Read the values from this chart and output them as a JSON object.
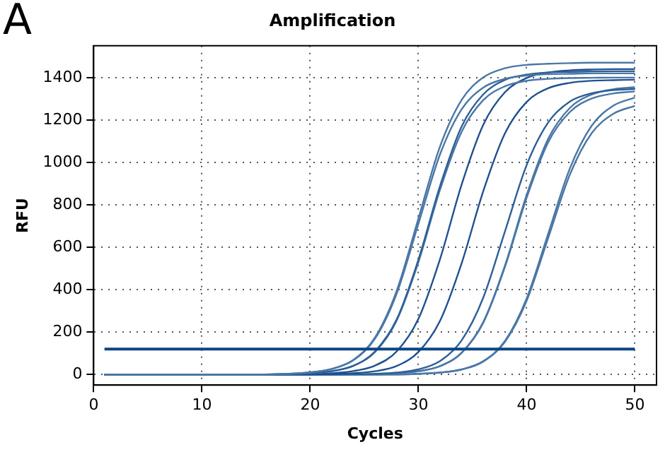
{
  "chart_data": {
    "type": "line",
    "title": "Amplification",
    "xlabel": "Cycles",
    "ylabel": "RFU",
    "annotations": [
      "A"
    ],
    "x": [
      1,
      5,
      10,
      15,
      20,
      22,
      24,
      26,
      28,
      30,
      32,
      34,
      36,
      38,
      40,
      42,
      44,
      46,
      48,
      50
    ],
    "xlim": [
      0,
      52
    ],
    "xticks": [
      0,
      10,
      20,
      30,
      40,
      50
    ],
    "ylim": [
      -50,
      1550
    ],
    "yticks": [
      0,
      200,
      400,
      600,
      800,
      1000,
      1200,
      1400
    ],
    "grid": true,
    "legend": false,
    "marker": "none",
    "line_style": "solid",
    "ref_lines": [
      {
        "axis": "y",
        "value": 120,
        "color": "#0b4584"
      }
    ],
    "series": [
      {
        "color": "#4a77a6",
        "values": [
          0,
          0,
          0,
          0,
          10,
          26,
          69,
          175,
          395,
          735,
          1075,
          1295,
          1401,
          1444,
          1460,
          1465,
          1468,
          1470,
          1470,
          1470
        ]
      },
      {
        "color": "#4a77a6",
        "values": [
          0,
          0,
          0,
          0,
          10,
          26,
          67,
          169,
          382,
          710,
          1038,
          1251,
          1353,
          1394,
          1410,
          1416,
          1418,
          1420,
          1420,
          1420
        ]
      },
      {
        "color": "#2c5f96",
        "values": [
          0,
          0,
          0,
          0,
          6,
          16,
          41,
          109,
          260,
          541,
          889,
          1170,
          1321,
          1389,
          1414,
          1424,
          1427,
          1429,
          1430,
          1430
        ]
      },
      {
        "color": "#4a77a6",
        "values": [
          0,
          0,
          0,
          0,
          6,
          15,
          41,
          106,
          255,
          529,
          871,
          1145,
          1294,
          1359,
          1385,
          1394,
          1398,
          1399,
          1400,
          1400
        ]
      },
      {
        "color": "#1f5190",
        "values": [
          0,
          0,
          0,
          0,
          2,
          6,
          16,
          42,
          109,
          262,
          544,
          896,
          1178,
          1331,
          1398,
          1424,
          1434,
          1438,
          1440,
          1440
        ]
      },
      {
        "color": "#1f5190",
        "values": [
          0,
          0,
          0,
          0,
          0,
          2,
          6,
          15,
          40,
          106,
          253,
          525,
          865,
          1137,
          1285,
          1350,
          1375,
          1385,
          1388,
          1390
        ]
      },
      {
        "color": "#2c5f96",
        "values": [
          0,
          0,
          0,
          0,
          0,
          0,
          1,
          3,
          9,
          24,
          63,
          161,
          363,
          675,
          987,
          1189,
          1287,
          1326,
          1341,
          1346
        ]
      },
      {
        "color": "#4a77a6",
        "values": [
          0,
          0,
          0,
          0,
          0,
          0,
          0,
          2,
          6,
          15,
          39,
          103,
          248,
          514,
          846,
          1112,
          1257,
          1320,
          1345,
          1355
        ]
      },
      {
        "color": "#4a77a6",
        "values": [
          0,
          0,
          0,
          0,
          0,
          0,
          0,
          0,
          5,
          15,
          39,
          102,
          244,
          507,
          833,
          1096,
          1238,
          1301,
          1325,
          1335
        ]
      },
      {
        "color": "#4a77a6",
        "values": [
          0,
          0,
          0,
          0,
          0,
          0,
          0,
          0,
          0,
          3,
          9,
          24,
          63,
          158,
          358,
          665,
          972,
          1172,
          1267,
          1306
        ]
      },
      {
        "color": "#4a77a6",
        "values": [
          0,
          0,
          0,
          0,
          0,
          0,
          0,
          0,
          0,
          3,
          9,
          23,
          61,
          154,
          347,
          645,
          943,
          1137,
          1229,
          1267
        ]
      }
    ]
  }
}
